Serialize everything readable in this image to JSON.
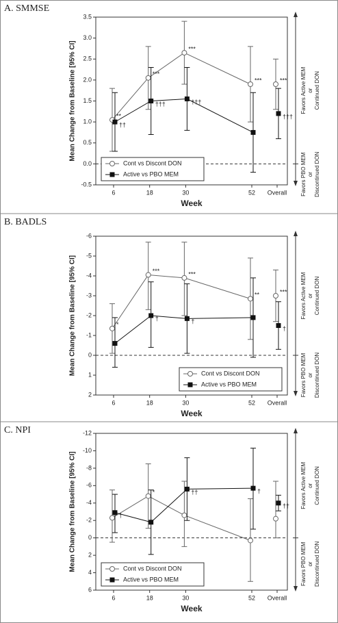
{
  "chart_data": [
    {
      "type": "errorbar",
      "title": "A. SMMSE",
      "y_label": "Mean Change from Baseline [95% CI]",
      "x_label": "Week",
      "categories": [
        "6",
        "18",
        "30",
        "52",
        "Overall"
      ],
      "ylim": [
        -0.5,
        3.5
      ],
      "y_inverted": false,
      "yticks": [
        -0.5,
        {
          "value": 0,
          "label": "0.0"
        },
        0.5,
        {
          "value": 1,
          "label": "1.0"
        },
        1.5,
        {
          "value": 2,
          "label": "2.0"
        },
        2.5,
        {
          "value": 3,
          "label": "3.0"
        },
        3.5
      ],
      "reference_line": 0,
      "legend": "lower left",
      "favors_top": [
        "Favors Active MEM",
        "or",
        "Continued DON"
      ],
      "favors_bottom": [
        "Favors PBO MEM",
        "or",
        "Discontinued DON"
      ],
      "series": [
        {
          "name": "Cont vs Discont DON",
          "color": "#666666",
          "marker": "circle",
          "values": [
            1.05,
            2.05,
            2.65,
            1.9,
            1.9
          ],
          "ci_low": [
            0.3,
            1.3,
            1.9,
            1.0,
            1.3
          ],
          "ci_high": [
            1.8,
            2.8,
            3.4,
            2.8,
            2.5
          ],
          "labels": [
            "**",
            "***",
            "***",
            "***",
            "***"
          ]
        },
        {
          "name": "Active vs PBO MEM",
          "color": "#111111",
          "marker": "square",
          "values": [
            1.0,
            1.5,
            1.55,
            0.75,
            1.2
          ],
          "ci_low": [
            0.3,
            0.7,
            0.8,
            -0.2,
            0.6
          ],
          "ci_high": [
            1.7,
            2.3,
            2.3,
            1.7,
            1.8
          ],
          "labels": [
            "††",
            "†††",
            "†††",
            null,
            "†††"
          ]
        }
      ]
    },
    {
      "type": "errorbar",
      "title": "B. BADLS",
      "y_label": "Mean Change from Baseline [95% CI]",
      "x_label": "Week",
      "categories": [
        "6",
        "18",
        "30",
        "52",
        "Overall"
      ],
      "ylim": [
        -6,
        2
      ],
      "y_inverted": true,
      "yticks": [
        -6,
        -5,
        -4,
        -3,
        -2,
        -1,
        0,
        1,
        2
      ],
      "reference_line": 0,
      "legend": "lower right",
      "favors_top": [
        "Favors Active MEM",
        "or",
        "Continued DON"
      ],
      "favors_bottom": [
        "Favors PBO MEM",
        "or",
        "Discontinued DON"
      ],
      "series": [
        {
          "name": "Cont vs Discont DON",
          "color": "#666666",
          "marker": "circle",
          "values": [
            -1.35,
            -4.05,
            -3.9,
            -2.85,
            -3.0
          ],
          "ci_low": [
            -2.6,
            -5.7,
            -5.7,
            -4.9,
            -4.3
          ],
          "ci_high": [
            -0.1,
            -2.3,
            -2.0,
            -0.8,
            -1.7
          ],
          "labels": [
            "*",
            "***",
            "***",
            "**",
            "***"
          ]
        },
        {
          "name": "Active vs PBO MEM",
          "color": "#111111",
          "marker": "square",
          "values": [
            -0.6,
            -2.0,
            -1.85,
            -1.9,
            -1.5
          ],
          "ci_low": [
            -1.9,
            -3.7,
            -3.6,
            -3.9,
            -2.7
          ],
          "ci_high": [
            0.6,
            -0.4,
            -0.1,
            0.1,
            -0.3
          ],
          "labels": [
            null,
            "†",
            "†",
            null,
            "†"
          ]
        }
      ]
    },
    {
      "type": "errorbar",
      "title": "C. NPI",
      "y_label": "Mean Change from Baseline [95% CI]",
      "x_label": "Week",
      "categories": [
        "6",
        "18",
        "30",
        "52",
        "Overall"
      ],
      "ylim": [
        -12,
        6
      ],
      "y_inverted": true,
      "yticks": [
        -12,
        -10,
        -8,
        -6,
        -4,
        -2,
        0,
        2,
        4,
        6
      ],
      "reference_line": 0,
      "legend": "lower left",
      "favors_top": [
        "Favors Active MEM",
        "or",
        "Continued DON"
      ],
      "favors_bottom": [
        "Favors PBO MEM",
        "or",
        "Discontinued DON"
      ],
      "series": [
        {
          "name": "Cont vs Discont DON",
          "color": "#666666",
          "marker": "circle",
          "values": [
            -2.3,
            -4.8,
            -2.6,
            0.3,
            -2.2
          ],
          "ci_low": [
            -5.5,
            -8.5,
            -6.5,
            -4.5,
            -6.5
          ],
          "ci_high": [
            0.5,
            -1.1,
            1.0,
            5.0,
            0
          ],
          "labels": [
            null,
            "*",
            null,
            null,
            null
          ]
        },
        {
          "name": "Active vs PBO MEM",
          "color": "#111111",
          "marker": "square",
          "values": [
            -2.9,
            -1.8,
            -5.6,
            -5.7,
            -4.0
          ],
          "ci_low": [
            -5.0,
            -5.5,
            -9.2,
            -10.3,
            -4.9
          ],
          "ci_high": [
            -0.6,
            1.9,
            -2.0,
            -1.0,
            -3.1
          ],
          "labels": [
            "†",
            null,
            "††",
            "†",
            "††"
          ]
        }
      ]
    }
  ]
}
